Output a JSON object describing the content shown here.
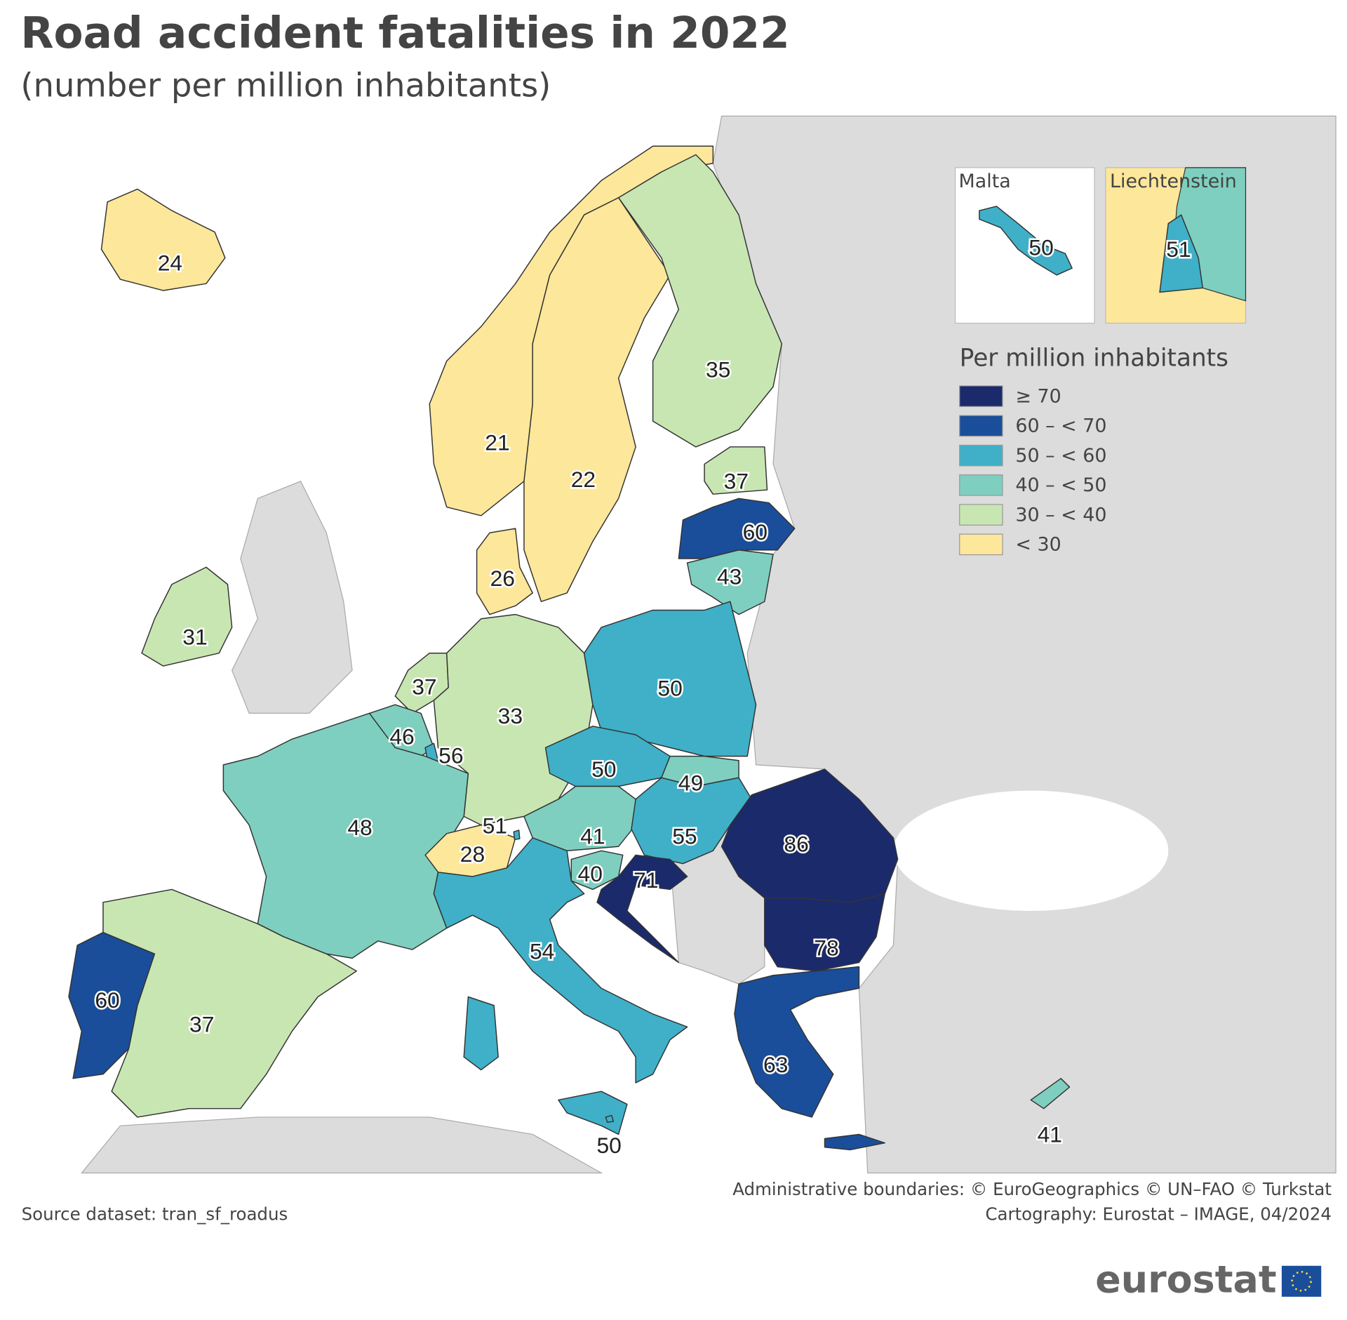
{
  "title": "Road accident fatalities in 2022",
  "subtitle": "(number per million inhabitants)",
  "map": {
    "regions": [
      {
        "value": 24,
        "color": "#fde79a"
      },
      {
        "value": 21,
        "color": "#fde79a"
      },
      {
        "value": 22,
        "color": "#fde79a"
      },
      {
        "value": 35,
        "color": "#c8e6b2"
      },
      {
        "value": 37,
        "color": "#c8e6b2"
      },
      {
        "value": 60,
        "color": "#1a4e9a"
      },
      {
        "value": 43,
        "color": "#7ecfbf"
      },
      {
        "value": 26,
        "color": "#fde79a"
      },
      {
        "value": 31,
        "color": "#c8e6b2"
      },
      {
        "value": 37,
        "color": "#c8e6b2"
      },
      {
        "value": 33,
        "color": "#c8e6b2"
      },
      {
        "value": 50,
        "color": "#3fb0c8"
      },
      {
        "value": 46,
        "color": "#7ecfbf"
      },
      {
        "value": 56,
        "color": "#3fb0c8"
      },
      {
        "value": 50,
        "color": "#3fb0c8"
      },
      {
        "value": 49,
        "color": "#7ecfbf"
      },
      {
        "value": 48,
        "color": "#7ecfbf"
      },
      {
        "value": 41,
        "color": "#7ecfbf"
      },
      {
        "value": 55,
        "color": "#3fb0c8"
      },
      {
        "value": 86,
        "color": "#1b2a6b"
      },
      {
        "value": 28,
        "color": "#fde79a"
      },
      {
        "value": 51,
        "color": "#3fb0c8"
      },
      {
        "value": 40,
        "color": "#7ecfbf"
      },
      {
        "value": 71,
        "color": "#1b2a6b"
      },
      {
        "value": 78,
        "color": "#1b2a6b"
      },
      {
        "value": 54,
        "color": "#3fb0c8"
      },
      {
        "value": 60,
        "color": "#1a4e9a"
      },
      {
        "value": 37,
        "color": "#c8e6b2"
      },
      {
        "value": 63,
        "color": "#1a4e9a"
      },
      {
        "value": 50,
        "color": "#3fb0c8"
      },
      {
        "value": 41,
        "color": "#7ecfbf"
      }
    ],
    "insets": [
      {
        "title": "Malta",
        "value": 50,
        "color": "#3fb0c8"
      },
      {
        "title": "Liechtenstein",
        "value": 51,
        "color": "#3fb0c8"
      }
    ],
    "legend": {
      "title": "Per million inhabitants",
      "items": [
        {
          "label": "≥ 70",
          "color": "#1b2a6b"
        },
        {
          "label": "60 – < 70",
          "color": "#1a4e9a"
        },
        {
          "label": "50 – < 60",
          "color": "#3fb0c8"
        },
        {
          "label": "40 – < 50",
          "color": "#7ecfbf"
        },
        {
          "label": "30 – < 40",
          "color": "#c8e6b2"
        },
        {
          "label": "< 30",
          "color": "#fde79a"
        }
      ]
    }
  },
  "footer": {
    "boundaries": "Administrative boundaries: © EuroGeographics © UN–FAO © Turkstat",
    "cartography": "Cartography: Eurostat – IMAGE, 04/2024",
    "source": "Source dataset: tran_sf_roadus",
    "logo": "eurostat"
  }
}
